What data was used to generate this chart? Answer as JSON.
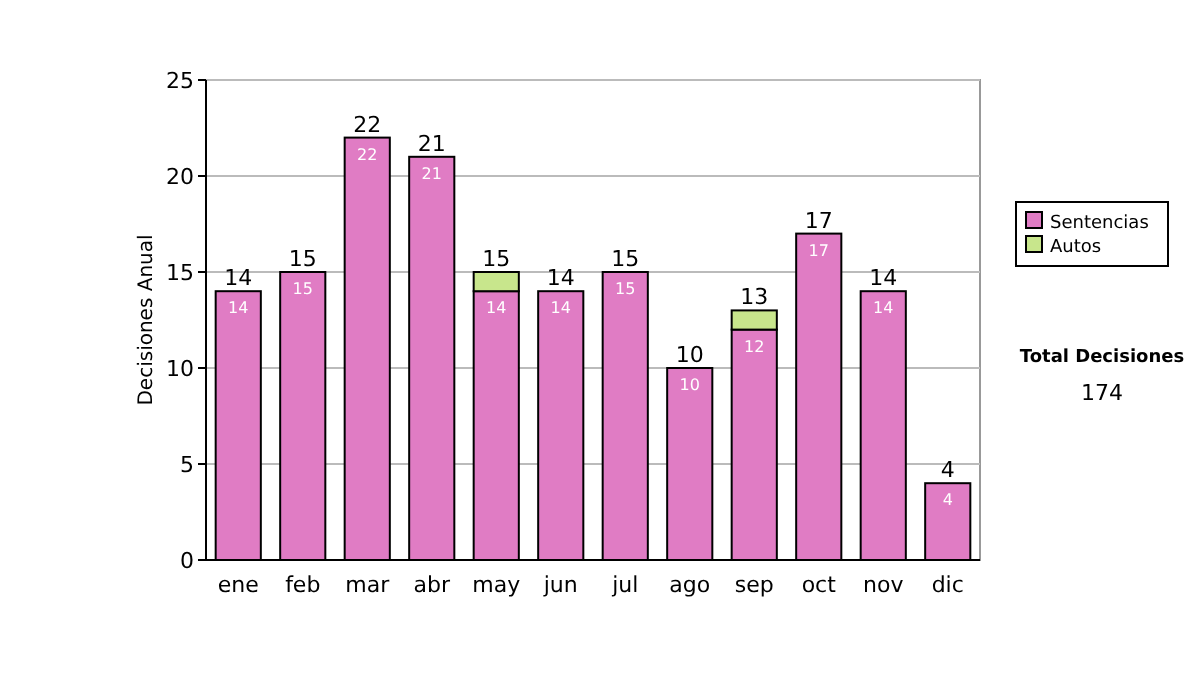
{
  "chart_data": {
    "type": "bar",
    "ylabel": "Decisiones Anual",
    "categories": [
      "ene",
      "feb",
      "mar",
      "abr",
      "may",
      "jun",
      "jul",
      "ago",
      "sep",
      "oct",
      "nov",
      "dic"
    ],
    "series": [
      {
        "name": "Sentencias",
        "color": "#e07cc4",
        "values": [
          14,
          15,
          22,
          21,
          14,
          14,
          15,
          10,
          12,
          17,
          14,
          4
        ],
        "value_labels": [
          "14",
          "15",
          "22",
          "21",
          "14",
          "14",
          "15",
          "10",
          "12",
          "17",
          "14",
          "4"
        ]
      },
      {
        "name": "Autos",
        "color": "#c8e68c",
        "values": [
          0,
          0,
          0,
          0,
          1,
          0,
          0,
          0,
          1,
          0,
          0,
          0
        ]
      }
    ],
    "stacked": true,
    "totals": [
      "14",
      "15",
      "22",
      "21",
      "15",
      "14",
      "15",
      "10",
      "13",
      "17",
      "14",
      "4"
    ],
    "ylim": [
      0,
      25
    ],
    "yticks": [
      0,
      5,
      10,
      15,
      20,
      25
    ],
    "grid": "y",
    "legend": "right",
    "annotations": [
      "Total Decisiones",
      "174"
    ]
  }
}
